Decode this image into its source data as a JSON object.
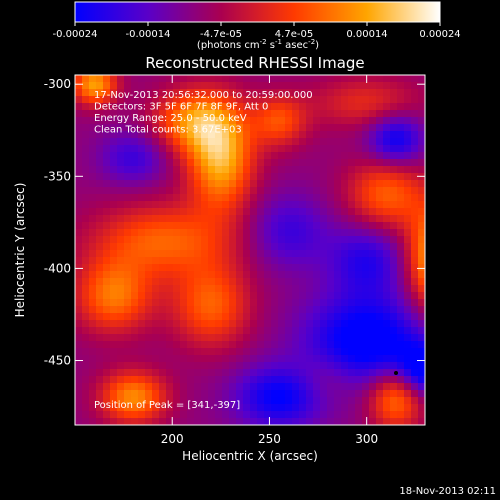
{
  "chart_data": {
    "type": "heatmap",
    "title": "Reconstructed RHESSI Image",
    "xlabel": "Heliocentric X (arcsec)",
    "ylabel": "Heliocentric Y (arcsec)",
    "xlim": [
      150,
      330
    ],
    "ylim": [
      -485,
      -295
    ],
    "x_ticks": [
      200,
      250,
      300
    ],
    "y_ticks": [
      -300,
      -350,
      -400,
      -450
    ],
    "info_lines": [
      "17-Nov-2013 20:56:32.000 to 20:59:00.000",
      "Detectors: 3F 5F 6F 7F 8F 9F, Att 0",
      "Energy Range: 25.0 - 50.0 keV",
      "Clean     Total counts: 3.67E+03"
    ],
    "peak_label": "Position of Peak = [341,-397]",
    "colorbar": {
      "ticks": [
        "-0.00024",
        "-0.00014",
        "-4.7e-05",
        "4.7e-05",
        "0.00014",
        "0.00024"
      ],
      "range": [
        -0.00024,
        0.00024
      ],
      "units_line1": "(photons cm",
      "units_exp1": "-2",
      "units_mid": " s",
      "units_exp2": "-1",
      "units_end": " asec",
      "units_exp3": "-2",
      "units_close": ")",
      "palette": [
        "#0000ff",
        "#5a00c8",
        "#aa0050",
        "#ff3a00",
        "#ffa500",
        "#ffffff"
      ]
    },
    "hotspots": [
      {
        "x": 225,
        "y": -340,
        "amp": 0.00024,
        "sx": 12,
        "sy": 20
      },
      {
        "x": 210,
        "y": -320,
        "amp": 0.00018,
        "sx": 14,
        "sy": 12
      },
      {
        "x": 195,
        "y": -385,
        "amp": 0.00016,
        "sx": 25,
        "sy": 14
      },
      {
        "x": 170,
        "y": -415,
        "amp": 0.00018,
        "sx": 14,
        "sy": 14
      },
      {
        "x": 220,
        "y": -420,
        "amp": 0.00016,
        "sx": 14,
        "sy": 16
      },
      {
        "x": 180,
        "y": -470,
        "amp": 0.0002,
        "sx": 12,
        "sy": 10
      },
      {
        "x": 160,
        "y": -300,
        "amp": 0.00022,
        "sx": 8,
        "sy": 8
      },
      {
        "x": 335,
        "y": -395,
        "amp": 0.00024,
        "sx": 10,
        "sy": 20
      },
      {
        "x": 310,
        "y": -360,
        "amp": 0.00016,
        "sx": 14,
        "sy": 14
      },
      {
        "x": 300,
        "y": -310,
        "amp": 0.0001,
        "sx": 20,
        "sy": 10
      },
      {
        "x": 315,
        "y": -470,
        "amp": 0.0002,
        "sx": 10,
        "sy": 12
      },
      {
        "x": 255,
        "y": -320,
        "amp": 0.00014,
        "sx": 10,
        "sy": 10
      },
      {
        "x": 280,
        "y": -460,
        "amp": 6e-05,
        "sx": 12,
        "sy": 10
      },
      {
        "x": 255,
        "y": -470,
        "amp": -0.00016,
        "sx": 16,
        "sy": 12
      },
      {
        "x": 300,
        "y": -440,
        "amp": -0.0002,
        "sx": 22,
        "sy": 18
      },
      {
        "x": 260,
        "y": -380,
        "amp": -0.0001,
        "sx": 14,
        "sy": 14
      },
      {
        "x": 300,
        "y": -395,
        "amp": -0.00012,
        "sx": 14,
        "sy": 14
      },
      {
        "x": 315,
        "y": -330,
        "amp": -0.00016,
        "sx": 10,
        "sy": 10
      },
      {
        "x": 180,
        "y": -340,
        "amp": -0.0001,
        "sx": 12,
        "sy": 10
      },
      {
        "x": 330,
        "y": -455,
        "amp": -0.00018,
        "sx": 10,
        "sy": 10
      }
    ],
    "baseline": -8e-05
  },
  "footer": {
    "timestamp": "18-Nov-2013 02:11"
  }
}
